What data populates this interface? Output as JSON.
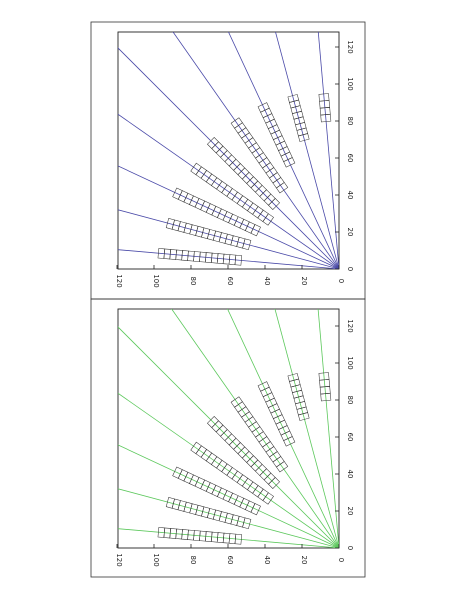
{
  "figure": {
    "panels": [
      {
        "name": "top",
        "line_color": "#4a4aa8",
        "tick_values": [
          0,
          20,
          40,
          60,
          80,
          100,
          120
        ],
        "y_tick_labels": [
          "0",
          "20",
          "40",
          "60",
          "80",
          "100",
          "120"
        ],
        "x_tick_labels": [
          "0",
          "20",
          "40",
          "60",
          "80",
          "100",
          "120"
        ]
      },
      {
        "name": "bottom",
        "line_color": "#5cc85c",
        "tick_values": [
          0,
          20,
          40,
          60,
          80,
          100,
          120
        ],
        "y_tick_labels": [
          "0",
          "20",
          "40",
          "60",
          "80",
          "100",
          "120"
        ],
        "x_tick_labels": [
          "0",
          "20",
          "40",
          "60",
          "80",
          "100",
          "120"
        ]
      }
    ],
    "ray_angles_deg": [
      5,
      15,
      25,
      35,
      45,
      55,
      65,
      75,
      85
    ],
    "box_strips": [
      {
        "angle_deg": 5,
        "r_start": 80,
        "r_end": 95,
        "boxes": 4
      },
      {
        "angle_deg": 15,
        "r_start": 72,
        "r_end": 97,
        "boxes": 8
      },
      {
        "angle_deg": 25,
        "r_start": 62,
        "r_end": 98,
        "boxes": 11
      },
      {
        "angle_deg": 35,
        "r_start": 52,
        "r_end": 98,
        "boxes": 14
      },
      {
        "angle_deg": 45,
        "r_start": 48,
        "r_end": 98,
        "boxes": 15
      },
      {
        "angle_deg": 55,
        "r_start": 45,
        "r_end": 96,
        "boxes": 15
      },
      {
        "angle_deg": 65,
        "r_start": 48,
        "r_end": 98,
        "boxes": 15
      },
      {
        "angle_deg": 75,
        "r_start": 50,
        "r_end": 96,
        "boxes": 14
      },
      {
        "angle_deg": 85,
        "r_start": 53,
        "r_end": 98,
        "boxes": 14
      }
    ]
  }
}
